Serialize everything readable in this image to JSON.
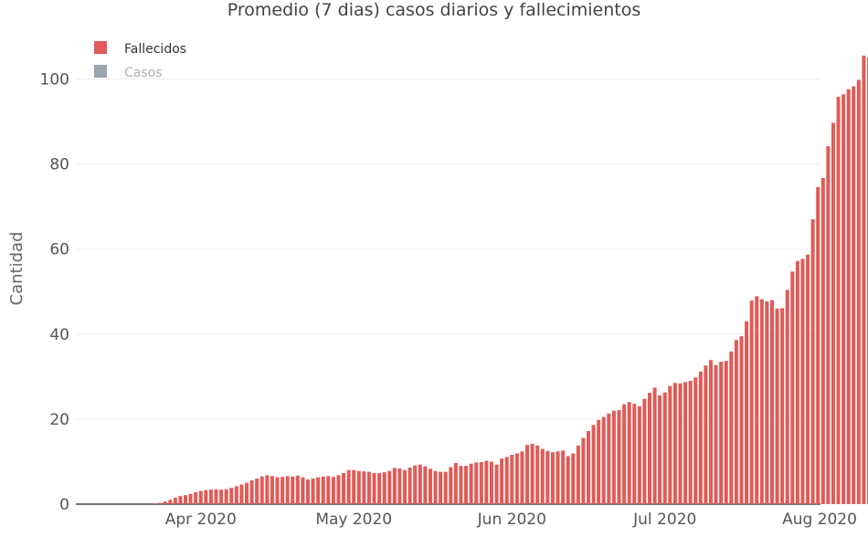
{
  "chart_data": {
    "type": "bar",
    "title": "Promedio (7 dias) casos diarios y fallecimientos",
    "xlabel": "",
    "ylabel": "Cantidad",
    "ylim": [
      0,
      110
    ],
    "yticks": [
      0,
      20,
      40,
      60,
      80,
      100
    ],
    "grid": true,
    "legend_placement": "top-left",
    "x_start": "2020-03-08",
    "x_end": "2020-07-31",
    "xticks": [
      "Apr 2020",
      "May 2020",
      "Jun 2020",
      "Jul 2020",
      "Aug 2020"
    ],
    "xtick_dates": [
      "2020-04-01",
      "2020-05-01",
      "2020-06-01",
      "2020-07-01",
      "2020-08-01"
    ],
    "colors": {
      "fallecidos": "#e05b57",
      "casos": "#9aa5b1"
    },
    "series": [
      {
        "name": "Fallecidos",
        "visible": true,
        "values": [
          0,
          0,
          0,
          0,
          0,
          0,
          0,
          0,
          0,
          0,
          0,
          0,
          0,
          0,
          0,
          0.1,
          0.3,
          0.6,
          1.0,
          1.5,
          1.9,
          2.1,
          2.4,
          2.8,
          3.1,
          3.3,
          3.4,
          3.5,
          3.4,
          3.5,
          3.8,
          4.2,
          4.6,
          5.0,
          5.6,
          6.0,
          6.5,
          6.8,
          6.6,
          6.3,
          6.4,
          6.6,
          6.5,
          6.7,
          6.3,
          5.8,
          6.0,
          6.3,
          6.5,
          6.6,
          6.4,
          6.8,
          7.3,
          8.0,
          8.0,
          7.8,
          7.7,
          7.6,
          7.3,
          7.3,
          7.5,
          7.8,
          8.5,
          8.4,
          8.0,
          8.6,
          9.1,
          9.3,
          8.9,
          8.3,
          7.8,
          7.6,
          7.6,
          8.7,
          9.7,
          9.0,
          9.0,
          9.5,
          9.8,
          9.9,
          10.2,
          10.0,
          9.3,
          10.7,
          11.1,
          11.6,
          11.9,
          12.4,
          13.9,
          14.2,
          13.8,
          13.0,
          12.5,
          12.2,
          12.4,
          12.6,
          11.3,
          11.9,
          13.8,
          15.6,
          17.2,
          18.6,
          19.8,
          20.5,
          21.3,
          22.0,
          22.1,
          23.5,
          24.0,
          23.6,
          23.0,
          24.8,
          26.2,
          27.4,
          25.6,
          26.3,
          27.8,
          28.5,
          28.4,
          28.7,
          29.0,
          29.8,
          31.2,
          32.6,
          33.9,
          32.7,
          33.5,
          33.7,
          35.9,
          38.6,
          39.5,
          43.0,
          47.9,
          48.9,
          48.2,
          47.7,
          48.0,
          46.0,
          46.1,
          50.4,
          54.7,
          57.2,
          57.7,
          58.7,
          67.0,
          74.6,
          76.7,
          84.2,
          89.7,
          95.8,
          96.4,
          97.6,
          98.3,
          99.8,
          105.5,
          105.1,
          100.8
        ]
      },
      {
        "name": "Casos",
        "visible": false,
        "values": []
      }
    ]
  }
}
